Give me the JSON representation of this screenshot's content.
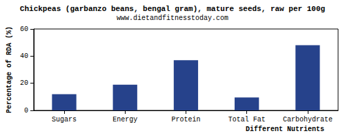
{
  "chart_data": {
    "type": "bar",
    "title": "Chickpeas (garbanzo beans, bengal gram), mature seeds, raw per 100g",
    "subtitle": "www.dietandfitnesstoday.com",
    "x_label": "Different Nutrients",
    "y_label": "Percentage of RDA (%)",
    "categories": [
      "Sugars",
      "Energy",
      "Protein",
      "Total Fat",
      "Carbohydrate"
    ],
    "values": [
      12,
      19,
      37,
      9.5,
      48
    ],
    "color": "#26428b",
    "ylim": [
      0,
      60
    ],
    "yticks": [
      0,
      20,
      40,
      60
    ],
    "grid": false
  }
}
